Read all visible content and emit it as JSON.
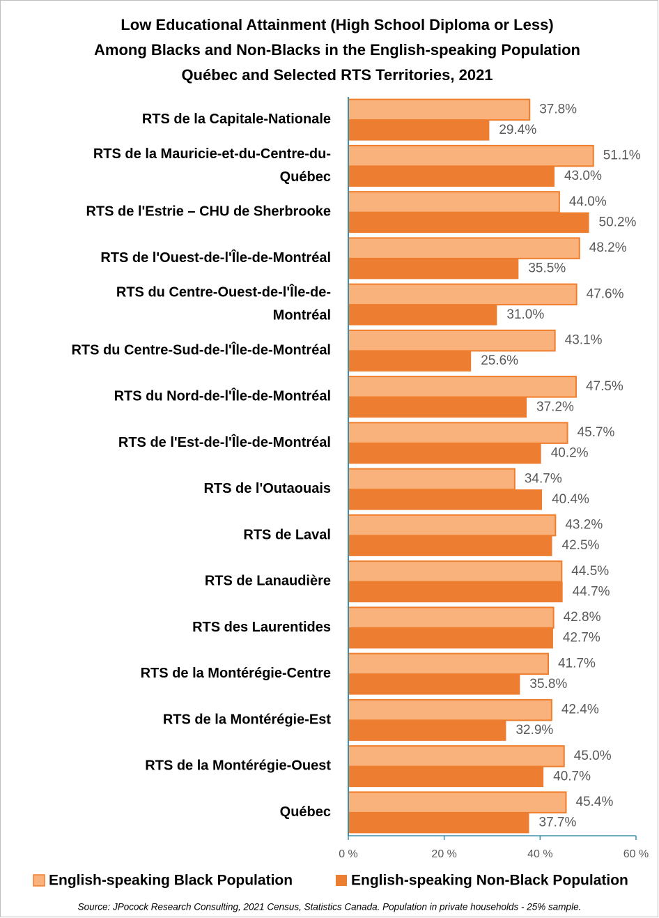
{
  "chart_data": {
    "type": "hbar",
    "title": "Low Educational Attainment (High School Diploma or Less)\nAmong Blacks and Non-Blacks in the English-speaking Population\nQuébec and Selected RTS Territories, 2021",
    "categories": [
      "RTS de la Capitale-Nationale",
      "RTS de la Mauricie-et-du-Centre-du-\nQuébec",
      "RTS de l'Estrie – CHU de Sherbrooke",
      "RTS de l'Ouest-de-l'Île-de-Montréal",
      "RTS du Centre-Ouest-de-l'Île-de-\nMontréal",
      "RTS du Centre-Sud-de-l'Île-de-Montréal",
      "RTS du Nord-de-l'Île-de-Montréal",
      "RTS de l'Est-de-l'Île-de-Montréal",
      "RTS de l'Outaouais",
      "RTS de Laval",
      "RTS de Lanaudière",
      "RTS des Laurentides",
      "RTS de la Montérégie-Centre",
      "RTS de la Montérégie-Est",
      "RTS de la Montérégie-Ouest",
      "Québec"
    ],
    "series": [
      {
        "name": "English-speaking Black Population",
        "color": "#F9B27C",
        "edgecolor": "#F07D2B",
        "values": [
          37.8,
          51.1,
          44.0,
          48.2,
          47.6,
          43.1,
          47.5,
          45.7,
          34.7,
          43.2,
          44.5,
          42.8,
          41.7,
          42.4,
          45.0,
          45.4
        ],
        "value_labels": [
          "37.8%",
          "51.1%",
          "44.0%",
          "48.2%",
          "47.6%",
          "43.1%",
          "47.5%",
          "45.7%",
          "34.7%",
          "43.2%",
          "44.5%",
          "42.8%",
          "41.7%",
          "42.4%",
          "45.0%",
          "45.4%"
        ]
      },
      {
        "name": "English-speaking Non-Black Population",
        "color": "#ED7D31",
        "values": [
          29.4,
          43.0,
          50.2,
          35.5,
          31.0,
          25.6,
          37.2,
          40.2,
          40.4,
          42.5,
          44.7,
          42.7,
          35.8,
          32.9,
          40.7,
          37.7
        ],
        "value_labels": [
          "29.4%",
          "43.0%",
          "50.2%",
          "35.5%",
          "31.0%",
          "25.6%",
          "37.2%",
          "40.2%",
          "40.4%",
          "42.5%",
          "44.7%",
          "42.7%",
          "35.8%",
          "32.9%",
          "40.7%",
          "37.7%"
        ]
      }
    ],
    "xlim": [
      0,
      60
    ],
    "xticks": [
      {
        "value": 0,
        "label": "0 %"
      },
      {
        "value": 20,
        "label": "20 %"
      },
      {
        "value": 40,
        "label": "40 %"
      },
      {
        "value": 60,
        "label": "60 %"
      }
    ],
    "grid": false,
    "legend": "bottom",
    "source": "Source: JPocock Research Consulting, 2021 Census, Statistics Canada. Population in private households - 25% sample."
  }
}
